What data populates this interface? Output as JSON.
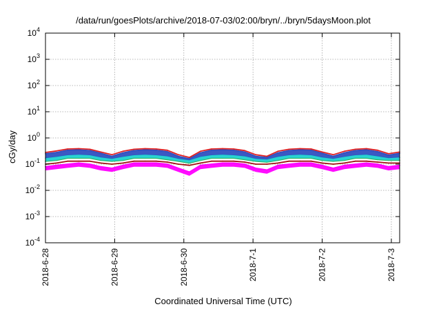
{
  "chart_data": {
    "type": "line",
    "title": "/data/run/goesPlots/archive/2018-07-03/02:00/bryn/../bryn/5daysMoon.plot",
    "xlabel": "Coordinated Universal Time (UTC)",
    "ylabel": "cGy/day",
    "yscale": "log",
    "ylim": [
      0.0001,
      10000
    ],
    "xlim": [
      0,
      5.12
    ],
    "grid": true,
    "legend": "none",
    "yticks": [
      {
        "value": 0.0001,
        "base": "10",
        "exp": "-4"
      },
      {
        "value": 0.001,
        "base": "10",
        "exp": "-3"
      },
      {
        "value": 0.01,
        "base": "10",
        "exp": "-2"
      },
      {
        "value": 0.1,
        "base": "10",
        "exp": "-1"
      },
      {
        "value": 1,
        "base": "10",
        "exp": "0"
      },
      {
        "value": 10,
        "base": "10",
        "exp": "1"
      },
      {
        "value": 100,
        "base": "10",
        "exp": "2"
      },
      {
        "value": 1000,
        "base": "10",
        "exp": "3"
      },
      {
        "value": 10000,
        "base": "10",
        "exp": "4"
      }
    ],
    "xticks": [
      {
        "value": 0,
        "label": "2018-6-28"
      },
      {
        "value": 1,
        "label": "2018-6-29"
      },
      {
        "value": 2,
        "label": "2018-6-30"
      },
      {
        "value": 3,
        "label": "2018-7-1"
      },
      {
        "value": 4,
        "label": "2018-7-2"
      },
      {
        "value": 5,
        "label": "2018-7-3"
      }
    ],
    "x": [
      0,
      0.16,
      0.32,
      0.48,
      0.64,
      0.8,
      0.96,
      1.12,
      1.28,
      1.44,
      1.6,
      1.76,
      1.92,
      2.08,
      2.24,
      2.4,
      2.56,
      2.72,
      2.88,
      3.04,
      3.2,
      3.36,
      3.52,
      3.68,
      3.84,
      4.0,
      4.16,
      4.32,
      4.48,
      4.64,
      4.8,
      4.96,
      5.12
    ],
    "series": [
      {
        "color": "#ff00ff",
        "fill": true,
        "values": [
          0.08,
          0.09,
          0.1,
          0.11,
          0.1,
          0.08,
          0.07,
          0.09,
          0.11,
          0.11,
          0.11,
          0.1,
          0.07,
          0.05,
          0.09,
          0.1,
          0.11,
          0.11,
          0.1,
          0.07,
          0.06,
          0.09,
          0.1,
          0.11,
          0.11,
          0.09,
          0.07,
          0.09,
          0.1,
          0.11,
          0.1,
          0.08,
          0.09
        ]
      },
      {
        "color": "#a01010",
        "fill": false,
        "values": [
          0.1,
          0.11,
          0.13,
          0.13,
          0.13,
          0.11,
          0.1,
          0.11,
          0.13,
          0.13,
          0.13,
          0.12,
          0.1,
          0.09,
          0.11,
          0.13,
          0.13,
          0.13,
          0.12,
          0.1,
          0.1,
          0.11,
          0.13,
          0.13,
          0.13,
          0.11,
          0.1,
          0.11,
          0.13,
          0.13,
          0.12,
          0.11,
          0.11
        ]
      },
      {
        "color": "#2db34a",
        "fill": false,
        "values": [
          0.13,
          0.14,
          0.17,
          0.17,
          0.17,
          0.14,
          0.13,
          0.14,
          0.17,
          0.17,
          0.17,
          0.15,
          0.13,
          0.11,
          0.14,
          0.17,
          0.17,
          0.17,
          0.15,
          0.13,
          0.12,
          0.14,
          0.17,
          0.17,
          0.17,
          0.14,
          0.13,
          0.14,
          0.17,
          0.17,
          0.15,
          0.14,
          0.14
        ]
      },
      {
        "color": "#20d0d0",
        "fill": true,
        "values": [
          0.17,
          0.19,
          0.22,
          0.23,
          0.22,
          0.18,
          0.16,
          0.19,
          0.22,
          0.23,
          0.22,
          0.2,
          0.16,
          0.14,
          0.19,
          0.22,
          0.23,
          0.22,
          0.2,
          0.16,
          0.15,
          0.19,
          0.22,
          0.23,
          0.22,
          0.18,
          0.16,
          0.19,
          0.22,
          0.23,
          0.2,
          0.17,
          0.18
        ]
      },
      {
        "color": "#3050c0",
        "fill": true,
        "values": [
          0.25,
          0.28,
          0.34,
          0.35,
          0.33,
          0.26,
          0.2,
          0.27,
          0.33,
          0.35,
          0.34,
          0.3,
          0.2,
          0.16,
          0.27,
          0.34,
          0.35,
          0.34,
          0.29,
          0.2,
          0.18,
          0.27,
          0.33,
          0.35,
          0.34,
          0.26,
          0.2,
          0.27,
          0.33,
          0.35,
          0.3,
          0.22,
          0.26
        ]
      },
      {
        "color": "#e02020",
        "fill": false,
        "values": [
          0.28,
          0.32,
          0.38,
          0.39,
          0.37,
          0.29,
          0.23,
          0.31,
          0.37,
          0.39,
          0.38,
          0.34,
          0.23,
          0.18,
          0.31,
          0.38,
          0.39,
          0.38,
          0.33,
          0.23,
          0.2,
          0.31,
          0.37,
          0.39,
          0.38,
          0.29,
          0.23,
          0.31,
          0.37,
          0.39,
          0.34,
          0.25,
          0.29
        ]
      }
    ]
  }
}
